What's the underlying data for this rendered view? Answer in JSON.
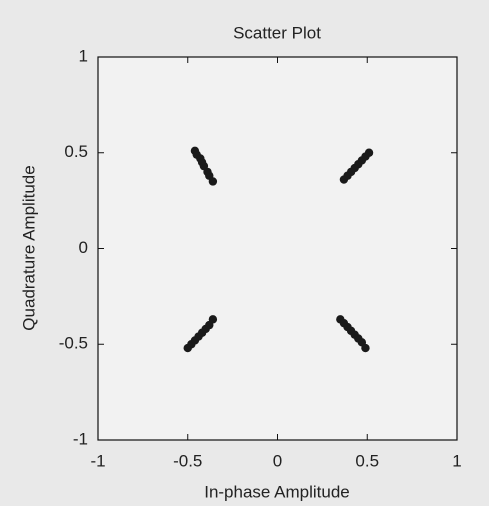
{
  "chart_data": {
    "type": "scatter",
    "title": "Scatter Plot",
    "x_label": "In-phase Amplitude",
    "y_label": "Quadrature Amplitude",
    "x": [
      -0.46,
      -0.45,
      -0.43,
      -0.42,
      -0.41,
      -0.39,
      -0.38,
      -0.36,
      0.37,
      0.39,
      0.41,
      0.43,
      0.45,
      0.47,
      0.49,
      0.51,
      -0.5,
      -0.48,
      -0.46,
      -0.44,
      -0.42,
      -0.4,
      -0.38,
      -0.36,
      0.35,
      0.37,
      0.39,
      0.41,
      0.43,
      0.45,
      0.47,
      0.49
    ],
    "values": [
      0.51,
      0.49,
      0.47,
      0.45,
      0.43,
      0.4,
      0.38,
      0.35,
      0.36,
      0.38,
      0.4,
      0.42,
      0.44,
      0.46,
      0.48,
      0.5,
      -0.52,
      -0.5,
      -0.48,
      -0.46,
      -0.44,
      -0.42,
      -0.4,
      -0.37,
      -0.37,
      -0.39,
      -0.41,
      -0.43,
      -0.45,
      -0.47,
      -0.49,
      -0.52
    ],
    "color": "#1a1a1a",
    "xlim": [
      -1,
      1
    ],
    "xticks": [
      -1,
      -0.5,
      0,
      0.5,
      1
    ],
    "ylim": [
      -1,
      1
    ],
    "yticks": [
      -1,
      -0.5,
      0,
      0.5,
      1
    ]
  }
}
